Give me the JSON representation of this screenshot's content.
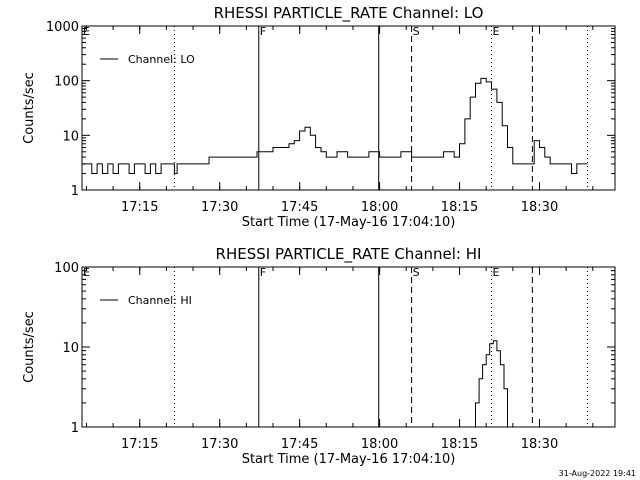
{
  "chart_data": [
    {
      "type": "line",
      "title": "RHESSI PARTICLE_RATE Channel: LO",
      "xlabel": "Start Time (17-May-16 17:04:10)",
      "ylabel": "Counts/sec",
      "yscale": "log",
      "ylim": [
        1,
        1000
      ],
      "yticks": [
        1,
        10,
        100,
        1000
      ],
      "yticklabels": [
        "1",
        "10",
        "100",
        "1000"
      ],
      "xlim": [
        "17:04:10",
        "18:44:10"
      ],
      "xticks": [
        "17:15",
        "17:30",
        "17:45",
        "18:00",
        "18:15",
        "18:30"
      ],
      "legend": {
        "label": "Channel: LO",
        "loc": "upper-left"
      },
      "grid": false,
      "event_lines": [
        {
          "time": "17:04:10",
          "label": "E",
          "style": "dotted"
        },
        {
          "time": "17:21:30",
          "label": "",
          "style": "dotted"
        },
        {
          "time": "17:37:20",
          "label": "F",
          "style": "solid"
        },
        {
          "time": "17:59:50",
          "label": "",
          "style": "solid"
        },
        {
          "time": "18:06:00",
          "label": "S",
          "style": "dashed"
        },
        {
          "time": "18:21:00",
          "label": "E",
          "style": "dotted"
        },
        {
          "time": "18:28:40",
          "label": "",
          "style": "dashed"
        },
        {
          "time": "18:39:00",
          "label": "",
          "style": "dotted"
        }
      ],
      "series": [
        {
          "name": "Channel: LO",
          "x": [
            "17:04:10",
            "17:05:00",
            "17:06:00",
            "17:07:00",
            "17:08:00",
            "17:09:00",
            "17:10:00",
            "17:11:00",
            "17:12:00",
            "17:13:00",
            "17:14:00",
            "17:15:00",
            "17:16:00",
            "17:17:00",
            "17:18:00",
            "17:19:00",
            "17:20:00",
            "17:21:00",
            "17:21:30",
            "17:22:00",
            "17:24:00",
            "17:26:00",
            "17:28:00",
            "17:30:00",
            "17:32:00",
            "17:34:00",
            "17:36:00",
            "17:37:00",
            "17:38:00",
            "17:39:00",
            "17:40:00",
            "17:41:00",
            "17:42:00",
            "17:43:00",
            "17:44:00",
            "17:45:00",
            "17:46:00",
            "17:47:00",
            "17:48:00",
            "17:49:00",
            "17:50:00",
            "17:52:00",
            "17:54:00",
            "17:56:00",
            "17:58:00",
            "18:00:00",
            "18:02:00",
            "18:04:00",
            "18:06:00",
            "18:08:00",
            "18:10:00",
            "18:12:00",
            "18:14:00",
            "18:15:00",
            "18:16:00",
            "18:17:00",
            "18:18:00",
            "18:19:00",
            "18:20:00",
            "18:21:00",
            "18:22:00",
            "18:23:00",
            "18:24:00",
            "18:25:00",
            "18:26:00",
            "18:27:00",
            "18:28:00",
            "18:29:00",
            "18:30:00",
            "18:31:00",
            "18:32:00",
            "18:33:00",
            "18:34:00",
            "18:35:00",
            "18:36:00",
            "18:37:00",
            "18:38:00",
            "18:39:00"
          ],
          "y": [
            3,
            3,
            2,
            3,
            2,
            3,
            2,
            3,
            3,
            2,
            3,
            3,
            2,
            3,
            2,
            3,
            3,
            3,
            2,
            3,
            3,
            3,
            4,
            4,
            4,
            4,
            4,
            5,
            5,
            5,
            6,
            6,
            6,
            7,
            8,
            12,
            14,
            10,
            6,
            5,
            4,
            5,
            4,
            4,
            5,
            4,
            4,
            5,
            4,
            4,
            4,
            5,
            4,
            7,
            20,
            50,
            90,
            110,
            95,
            70,
            40,
            15,
            6,
            3,
            3,
            3,
            3,
            8,
            6,
            4,
            3,
            3,
            3,
            3,
            2,
            3,
            3,
            3
          ]
        }
      ]
    },
    {
      "type": "line",
      "title": "RHESSI PARTICLE_RATE Channel: HI",
      "xlabel": "Start Time (17-May-16 17:04:10)",
      "ylabel": "Counts/sec",
      "yscale": "log",
      "ylim": [
        1,
        100
      ],
      "yticks": [
        1,
        10,
        100
      ],
      "yticklabels": [
        "1",
        "10",
        "100"
      ],
      "xlim": [
        "17:04:10",
        "18:44:10"
      ],
      "xticks": [
        "17:15",
        "17:30",
        "17:45",
        "18:00",
        "18:15",
        "18:30"
      ],
      "legend": {
        "label": "Channel: HI",
        "loc": "upper-left"
      },
      "grid": false,
      "event_lines": [
        {
          "time": "17:04:10",
          "label": "E",
          "style": "dotted"
        },
        {
          "time": "17:21:30",
          "label": "",
          "style": "dotted"
        },
        {
          "time": "17:37:20",
          "label": "F",
          "style": "solid"
        },
        {
          "time": "17:59:50",
          "label": "",
          "style": "solid"
        },
        {
          "time": "18:06:00",
          "label": "S",
          "style": "dashed"
        },
        {
          "time": "18:21:00",
          "label": "E",
          "style": "dotted"
        },
        {
          "time": "18:28:40",
          "label": "",
          "style": "dashed"
        },
        {
          "time": "18:39:00",
          "label": "",
          "style": "dotted"
        }
      ],
      "series": [
        {
          "name": "Channel: HI",
          "x": [
            "18:17:20",
            "18:18:00",
            "18:18:40",
            "18:19:20",
            "18:20:00",
            "18:20:40",
            "18:21:20",
            "18:22:00",
            "18:22:40",
            "18:23:20",
            "18:24:00"
          ],
          "y": [
            1,
            2,
            4,
            6,
            8,
            11,
            12,
            9,
            6,
            3,
            1
          ]
        }
      ]
    }
  ],
  "footer": {
    "timestamp": "31-Aug-2022 19:41"
  }
}
